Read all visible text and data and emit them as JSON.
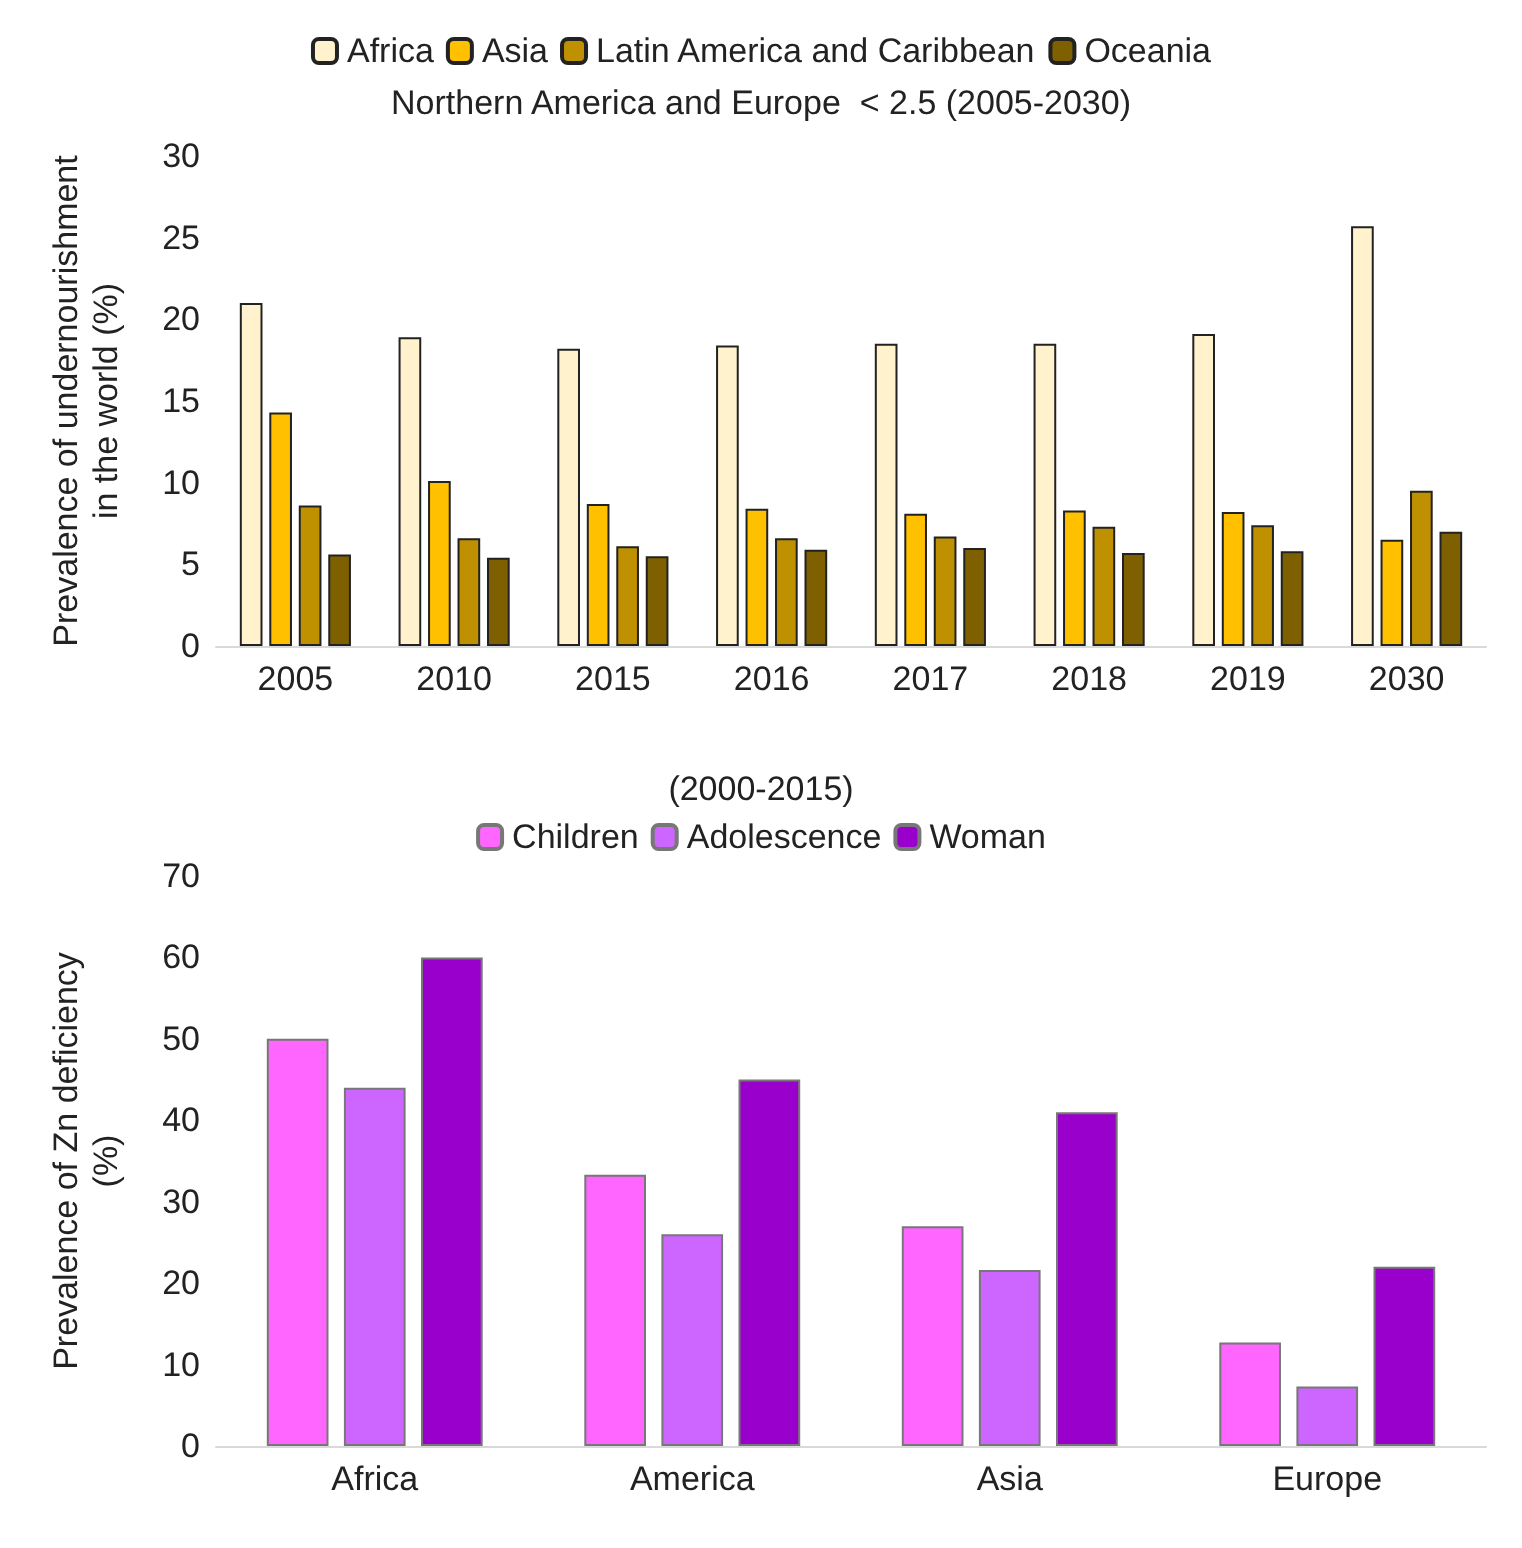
{
  "chart_data": [
    {
      "type": "bar",
      "title": "Northern America and Europe  < 2.5 (2005-2030)",
      "ylabel": "Prevalence of undernourishment\nin the world (%)",
      "categories": [
        "2005",
        "2010",
        "2015",
        "2016",
        "2017",
        "2018",
        "2019",
        "2030"
      ],
      "series": [
        {
          "name": "Africa",
          "color": "#fff2cc",
          "values": [
            21.0,
            18.9,
            18.2,
            18.4,
            18.5,
            18.5,
            19.1,
            25.7
          ]
        },
        {
          "name": "Asia",
          "color": "#ffc000",
          "values": [
            14.3,
            10.1,
            8.7,
            8.4,
            8.1,
            8.3,
            8.2,
            6.5
          ]
        },
        {
          "name": "Latin America and Caribbean",
          "color": "#bf9000",
          "values": [
            8.6,
            6.6,
            6.1,
            6.6,
            6.7,
            7.3,
            7.4,
            9.5
          ]
        },
        {
          "name": "Oceania",
          "color": "#7f6000",
          "values": [
            5.6,
            5.4,
            5.5,
            5.9,
            6.0,
            5.7,
            5.8,
            7.0
          ]
        }
      ],
      "ylim": [
        0,
        30
      ],
      "yticks": [
        0,
        5,
        10,
        15,
        20,
        25,
        30
      ],
      "grid": false,
      "legend": "top"
    },
    {
      "type": "bar",
      "title": "(2000-2015)",
      "ylabel": "Prevalence of Zn deficiency\n(%)",
      "categories": [
        "Africa",
        "America",
        "Asia",
        "Europe"
      ],
      "series": [
        {
          "name": "Children",
          "color": "#ff66ff",
          "values": [
            50,
            33.3,
            27,
            12.7
          ]
        },
        {
          "name": "Adolescence",
          "color": "#cc66ff",
          "values": [
            44,
            26,
            21.6,
            7.3
          ]
        },
        {
          "name": "Woman",
          "color": "#9900cc",
          "values": [
            60,
            45,
            41,
            22
          ]
        }
      ],
      "ylim": [
        0,
        70
      ],
      "yticks": [
        0,
        10,
        20,
        30,
        40,
        50,
        60,
        70
      ],
      "grid": false,
      "legend": "top"
    }
  ]
}
